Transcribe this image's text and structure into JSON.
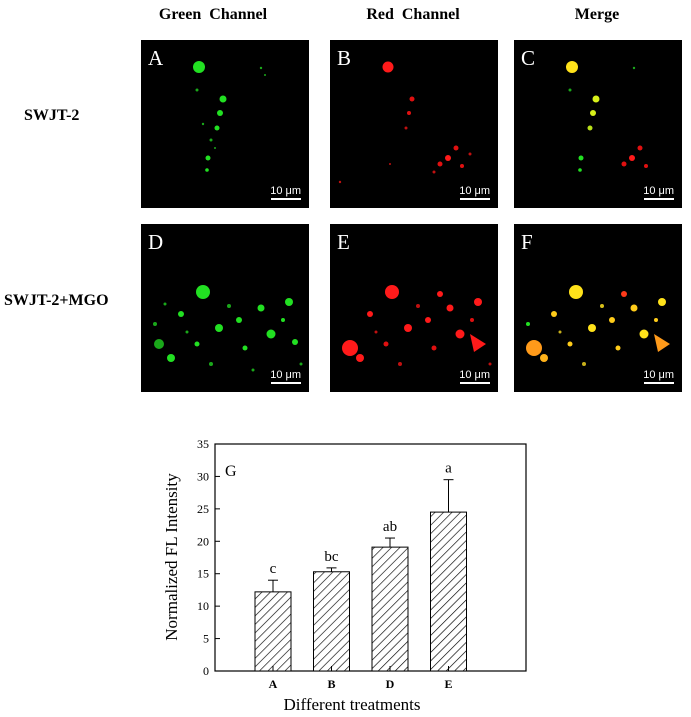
{
  "column_headers": [
    "Green  Channel",
    "Red  Channel",
    "Merge"
  ],
  "rows": [
    {
      "label": "SWJT-2",
      "panels": [
        {
          "letter": "A",
          "scale": "10 μm"
        },
        {
          "letter": "B",
          "scale": "10 μm"
        },
        {
          "letter": "C",
          "scale": "10 μm"
        }
      ]
    },
    {
      "label": "SWJT-2+MGO",
      "panels": [
        {
          "letter": "D",
          "scale": "10 μm"
        },
        {
          "letter": "E",
          "scale": "10 μm"
        },
        {
          "letter": "F",
          "scale": "10 μm"
        }
      ]
    }
  ],
  "colors": {
    "green": "#22e022",
    "red": "#ff1a1a",
    "merge": "#ffe21a",
    "merge_orange": "#ff9a1a",
    "background": "#000000"
  },
  "chart_data": {
    "type": "bar",
    "panel_label": "G",
    "categories": [
      "A",
      "B",
      "D",
      "E"
    ],
    "values": [
      12.2,
      15.3,
      19.1,
      24.5
    ],
    "errors": [
      1.8,
      0.6,
      1.4,
      5.0
    ],
    "significance_labels": [
      "c",
      "bc",
      "ab",
      "a"
    ],
    "xlabel": "Different treatments",
    "ylabel": "Normalized FL Intensity",
    "ylim": [
      0,
      35
    ],
    "yticks": [
      0,
      5,
      10,
      15,
      20,
      25,
      30,
      35
    ],
    "bar_fill": "diagonal-hatch",
    "grid": false
  }
}
